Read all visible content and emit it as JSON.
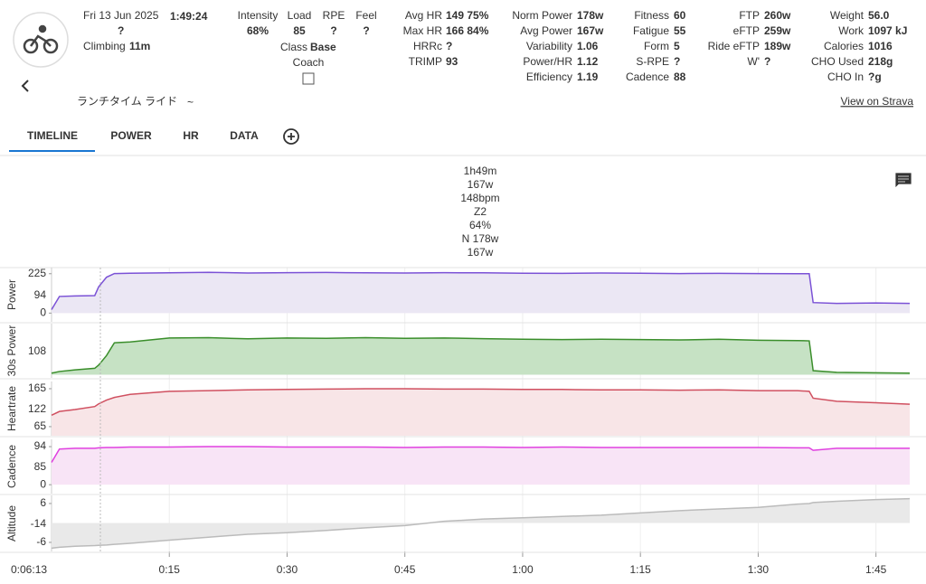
{
  "header": {
    "date": "Fri 13 Jun 2025",
    "duration": "1:49:24",
    "rating": "?",
    "climbing_label": "Climbing",
    "climbing": "11m",
    "activity_name": "ランチタイム ライド",
    "name_suffix": "~"
  },
  "summary": {
    "top": [
      {
        "label": "Intensity",
        "value": "68%"
      },
      {
        "label": "Load",
        "value": "85"
      },
      {
        "label": "RPE",
        "value": "?"
      },
      {
        "label": "Feel",
        "value": "?"
      }
    ],
    "class_label": "Class",
    "class": "Base",
    "coach_label": "Coach"
  },
  "stats": [
    [
      {
        "label": "Avg HR",
        "value": "149 75%"
      },
      {
        "label": "Max HR",
        "value": "166 84%"
      },
      {
        "label": "HRRc",
        "value": "?"
      },
      {
        "label": "TRIMP",
        "value": "93"
      }
    ],
    [
      {
        "label": "Norm Power",
        "value": "178w"
      },
      {
        "label": "Avg Power",
        "value": "167w"
      },
      {
        "label": "Variability",
        "value": "1.06"
      },
      {
        "label": "Power/HR",
        "value": "1.12"
      },
      {
        "label": "Efficiency",
        "value": "1.19"
      }
    ],
    [
      {
        "label": "Fitness",
        "value": "60"
      },
      {
        "label": "Fatigue",
        "value": "55"
      },
      {
        "label": "Form",
        "value": "5"
      },
      {
        "label": "S-RPE",
        "value": "?"
      },
      {
        "label": "Cadence",
        "value": "88"
      }
    ],
    [
      {
        "label": "FTP",
        "value": "260w"
      },
      {
        "label": "eFTP",
        "value": "259w"
      },
      {
        "label": "Ride eFTP",
        "value": "189w"
      },
      {
        "label": "W'",
        "value": "?"
      }
    ],
    [
      {
        "label": "Weight",
        "value": "56.0"
      },
      {
        "label": "Work",
        "value": "1097 kJ"
      },
      {
        "label": "Calories",
        "value": "1016"
      },
      {
        "label": "CHO Used",
        "value": "218g"
      },
      {
        "label": "CHO In",
        "value": "?g"
      }
    ]
  ],
  "link": "View on Strava",
  "tabs": [
    "TIMELINE",
    "POWER",
    "HR",
    "DATA"
  ],
  "tooltip": [
    {
      "text": "1h49m",
      "color": "#333333"
    },
    {
      "text": "167w",
      "color": "#5b3fb8"
    },
    {
      "text": "148bpm",
      "color": "#b03040"
    },
    {
      "text": "Z2",
      "color": "#333333"
    },
    {
      "text": "64%",
      "color": "#5b3fb8"
    },
    {
      "text": "N 178w",
      "color": "#5b3fb8"
    },
    {
      "text": "167w",
      "color": "#2e7d32"
    }
  ],
  "plots": {
    "x": [
      0,
      1,
      3,
      5.5,
      6,
      7,
      8,
      10,
      15,
      20,
      25,
      30,
      35,
      40,
      45,
      50,
      55,
      60,
      65,
      70,
      75,
      80,
      85,
      90,
      95,
      96.5,
      97,
      100,
      105,
      109.3
    ],
    "xlim": [
      0,
      109.3
    ],
    "xticks": [
      {
        "value": 15,
        "label": "0:15"
      },
      {
        "value": 30,
        "label": "0:30"
      },
      {
        "value": 45,
        "label": "0:45"
      },
      {
        "value": 60,
        "label": "1:00"
      },
      {
        "value": 75,
        "label": "1:15"
      },
      {
        "value": 90,
        "label": "1:30"
      },
      {
        "value": 105,
        "label": "1:45"
      }
    ],
    "cursor": "0:06:13",
    "panels": [
      {
        "label": "Power",
        "color": "#7b52d6",
        "fill": "#ebe7f4",
        "ylim": [
          -50,
          260
        ],
        "yticks": [
          0,
          225
        ],
        "cursor_value": 94,
        "values": [
          20,
          95,
          98,
          100,
          150,
          205,
          226,
          228,
          230,
          233,
          229,
          231,
          232,
          230,
          229,
          231,
          230,
          228,
          227,
          229,
          228,
          226,
          227,
          226,
          225,
          225,
          60,
          55,
          58,
          55
        ]
      },
      {
        "label": "30s Power",
        "color": "#3a8e2b",
        "fill": "#c6e2c4",
        "ylim": [
          -20,
          320
        ],
        "yticks": [],
        "cursor_value": 108,
        "values": [
          10,
          20,
          30,
          40,
          60,
          120,
          200,
          205,
          230,
          232,
          225,
          230,
          228,
          232,
          228,
          230,
          226,
          222,
          220,
          222,
          220,
          218,
          222,
          216,
          214,
          212,
          25,
          15,
          12,
          10
        ]
      },
      {
        "label": "Heartrate",
        "color": "#d05060",
        "fill": "#f8e5e7",
        "ylim": [
          41,
          184
        ],
        "yticks": [
          65,
          165
        ],
        "cursor_value": 122,
        "values": [
          95,
          105,
          110,
          118,
          125,
          135,
          142,
          150,
          158,
          160,
          162,
          163,
          164,
          165,
          165,
          164,
          164,
          163,
          163,
          162,
          162,
          161,
          162,
          160,
          160,
          158,
          140,
          132,
          128,
          124
        ]
      },
      {
        "label": "Cadence",
        "color": "#e040e0",
        "fill": "#f8e4f6",
        "ylim": [
          -22,
          112
        ],
        "yticks": [
          0,
          94
        ],
        "cursor_value": 85,
        "values": [
          55,
          88,
          90,
          90,
          91,
          92,
          92,
          93,
          93,
          94,
          94,
          93,
          93,
          93,
          92,
          93,
          93,
          92,
          93,
          92,
          92,
          92,
          92,
          92,
          91,
          91,
          85,
          90,
          90,
          90
        ]
      },
      {
        "label": "Altitude",
        "color": "#bbbbbb",
        "fill": "#e9e9e9",
        "ylim": [
          -8.8,
          8.5
        ],
        "yticks": [
          -6,
          6
        ],
        "cursor_value": -14,
        "values": [
          -7.8,
          -7.5,
          -7.2,
          -7.0,
          -6.9,
          -6.8,
          -6.6,
          -6.3,
          -5.3,
          -4.4,
          -3.5,
          -3.0,
          -2.3,
          -1.5,
          -0.8,
          0.5,
          1.2,
          1.6,
          2.0,
          2.4,
          3.1,
          3.8,
          4.3,
          4.8,
          5.8,
          6.0,
          6.3,
          6.7,
          7.2,
          7.5
        ]
      }
    ]
  }
}
